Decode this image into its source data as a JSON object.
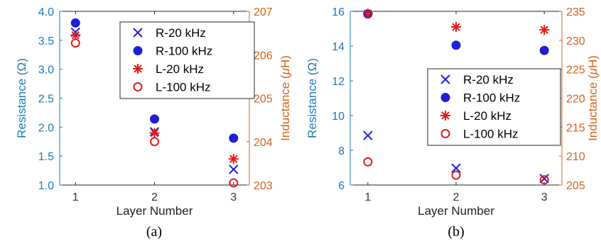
{
  "chart_data": [
    {
      "type": "scatter",
      "caption": "(a)",
      "xlabel": "Layer Number",
      "ylabel_left": "Resistance (Ω)",
      "ylabel_right_prefix": "Inductance (",
      "ylabel_right_mu": "μ",
      "ylabel_right_suffix": "H)",
      "x_ticks": [
        "1",
        "2",
        "3"
      ],
      "y_left_ticks": [
        "1.0",
        "1.5",
        "2.0",
        "2.5",
        "3.0",
        "3.5",
        "4.0"
      ],
      "y_right_ticks": [
        "203",
        "204",
        "205",
        "206",
        "207"
      ],
      "ylim_left": [
        1.0,
        4.0
      ],
      "ylim_right": [
        203,
        207
      ],
      "xlim": [
        0.8,
        3.2
      ],
      "legend": {
        "placement": "top-right"
      },
      "series": [
        {
          "name": "R-20 kHz",
          "axis": "left",
          "marker": "x",
          "color": "#1f1fd6",
          "x": [
            1,
            2,
            3
          ],
          "y": [
            3.64,
            1.92,
            1.27
          ]
        },
        {
          "name": "R-100 kHz",
          "axis": "left",
          "marker": "filled-circle",
          "color": "#1f1fd6",
          "x": [
            1,
            2,
            3
          ],
          "y": [
            3.8,
            2.14,
            1.81
          ]
        },
        {
          "name": "L-20 kHz",
          "axis": "right",
          "marker": "asterisk",
          "color": "#e01b1b",
          "x": [
            1,
            2,
            3
          ],
          "y": [
            206.45,
            204.2,
            203.6
          ]
        },
        {
          "name": "L-100 kHz",
          "axis": "right",
          "marker": "open-circle",
          "color": "#e01b1b",
          "x": [
            1,
            2,
            3
          ],
          "y": [
            206.27,
            204.0,
            203.05
          ]
        }
      ]
    },
    {
      "type": "scatter",
      "caption": "(b)",
      "xlabel": "Layer Number",
      "ylabel_left": "Resistance (Ω)",
      "ylabel_right_prefix": "Inductance (",
      "ylabel_right_mu": "μ",
      "ylabel_right_suffix": "H)",
      "x_ticks": [
        "1",
        "2",
        "3"
      ],
      "y_left_ticks": [
        "6",
        "8",
        "10",
        "12",
        "14",
        "16"
      ],
      "y_right_ticks": [
        "205",
        "210",
        "215",
        "220",
        "225",
        "230",
        "235"
      ],
      "ylim_left": [
        6,
        16
      ],
      "ylim_right": [
        205,
        235
      ],
      "xlim": [
        0.8,
        3.2
      ],
      "legend": {
        "placement": "right"
      },
      "series": [
        {
          "name": "R-20 kHz",
          "axis": "left",
          "marker": "x",
          "color": "#1f1fd6",
          "x": [
            1,
            2,
            3
          ],
          "y": [
            8.85,
            6.97,
            6.37
          ]
        },
        {
          "name": "R-100 kHz",
          "axis": "left",
          "marker": "filled-circle",
          "color": "#1f1fd6",
          "x": [
            1,
            2,
            3
          ],
          "y": [
            15.85,
            14.05,
            13.75
          ]
        },
        {
          "name": "L-20 kHz",
          "axis": "right",
          "marker": "asterisk",
          "color": "#e01b1b",
          "x": [
            1,
            2,
            3
          ],
          "y": [
            234.6,
            232.3,
            231.8
          ]
        },
        {
          "name": "L-100 kHz",
          "axis": "right",
          "marker": "open-circle",
          "color": "#e01b1b",
          "x": [
            1,
            2,
            3
          ],
          "y": [
            209.0,
            206.7,
            205.9
          ]
        }
      ]
    }
  ]
}
